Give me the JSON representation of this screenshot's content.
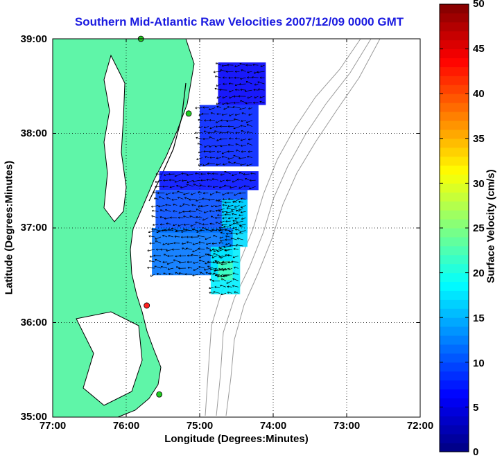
{
  "chart_data": {
    "type": "heatmap",
    "title": "Southern Mid-Atlantic Raw Velocities 2007/12/09 0000 GMT",
    "xlabel": "Longitude (Degrees:Minutes)",
    "ylabel": "Latitude (Degrees:Minutes)",
    "colorbar_label": "Surface Velocity (cm/s)",
    "x_ticks": [
      "77:00",
      "76:00",
      "75:00",
      "74:00",
      "73:00",
      "72:00"
    ],
    "y_ticks": [
      "39:00",
      "38:00",
      "37:00",
      "36:00",
      "35:00"
    ],
    "colorbar_ticks": [
      "50",
      "45",
      "40",
      "35",
      "30",
      "25",
      "20",
      "15",
      "10",
      "5",
      "0"
    ],
    "xlim": [
      -77,
      -72
    ],
    "ylim": [
      35,
      39
    ],
    "clim": [
      0,
      50
    ],
    "grid": true,
    "colormap": "jet",
    "colors": {
      "title": "#1a1ae0",
      "land": "#5ff5a8",
      "coast": "#000000",
      "bathymetry": "#9a9a9a",
      "stations_active": "#22cc22",
      "station_highlight": "#ff2222"
    },
    "velocity_regions": [
      {
        "lon": [
          -75.55,
          -74.2
        ],
        "lat": [
          37.4,
          37.6
        ],
        "speed": 7
      },
      {
        "lon": [
          -75.0,
          -74.2
        ],
        "lat": [
          37.65,
          38.3
        ],
        "speed": 8
      },
      {
        "lon": [
          -74.75,
          -74.1
        ],
        "lat": [
          38.3,
          38.75
        ],
        "speed": 6
      },
      {
        "lon": [
          -75.6,
          -74.35
        ],
        "lat": [
          36.95,
          37.4
        ],
        "speed": 10
      },
      {
        "lon": [
          -74.7,
          -74.35
        ],
        "lat": [
          36.8,
          37.3
        ],
        "speed": 17
      },
      {
        "lon": [
          -75.65,
          -74.55
        ],
        "lat": [
          36.5,
          37.0
        ],
        "speed": 12
      },
      {
        "lon": [
          -74.85,
          -74.45
        ],
        "lat": [
          36.3,
          36.8
        ],
        "speed": 18
      },
      {
        "lon": [
          -74.75,
          -74.55
        ],
        "lat": [
          36.45,
          36.65
        ],
        "speed": 22
      }
    ],
    "stations": [
      {
        "lon": -75.8,
        "lat": 39.0,
        "status": "active"
      },
      {
        "lon": -75.15,
        "lat": 38.21,
        "status": "active"
      },
      {
        "lon": -75.72,
        "lat": 36.18,
        "status": "highlight"
      },
      {
        "lon": -75.55,
        "lat": 35.24,
        "status": "active"
      }
    ]
  }
}
